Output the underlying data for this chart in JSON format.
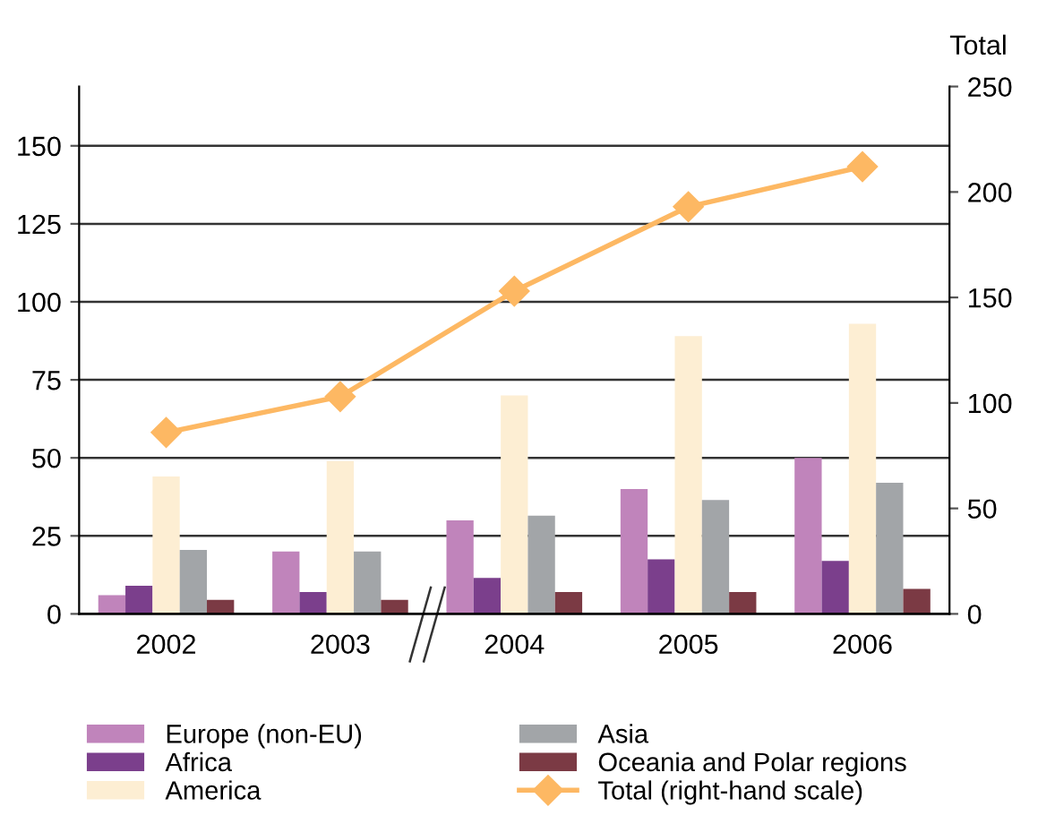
{
  "chart_data": {
    "type": "bar",
    "categories": [
      "2002",
      "2003",
      "2004",
      "2005",
      "2006"
    ],
    "series": [
      {
        "name": "Europe (non-EU)",
        "color": "#c084bb",
        "values": [
          6,
          20,
          30,
          40,
          50
        ]
      },
      {
        "name": "Africa",
        "color": "#7b3f8c",
        "values": [
          9,
          7,
          11.5,
          17.5,
          17
        ]
      },
      {
        "name": "America",
        "color": "#fdeed3",
        "values": [
          44,
          49,
          70,
          89,
          93
        ]
      },
      {
        "name": "Asia",
        "color": "#a2a5a8",
        "values": [
          20.5,
          20,
          31.5,
          36.5,
          42
        ]
      },
      {
        "name": "Oceania and Polar regions",
        "color": "#7b3a44",
        "values": [
          4.5,
          4.5,
          7,
          7,
          8
        ]
      },
      {
        "name": "Total (right-hand scale)",
        "type": "line",
        "axis": "y2",
        "color": "#fdb863",
        "marker": "diamond",
        "values": [
          86,
          103,
          153,
          193,
          212
        ]
      }
    ],
    "y2label": "Total",
    "ylim": [
      0,
      169
    ],
    "yticks": [
      0,
      25,
      50,
      75,
      100,
      125,
      150
    ],
    "y2lim": [
      0,
      250
    ],
    "y2ticks": [
      0,
      50,
      100,
      150,
      200,
      250
    ],
    "grid": "y",
    "legend": "bottom"
  }
}
